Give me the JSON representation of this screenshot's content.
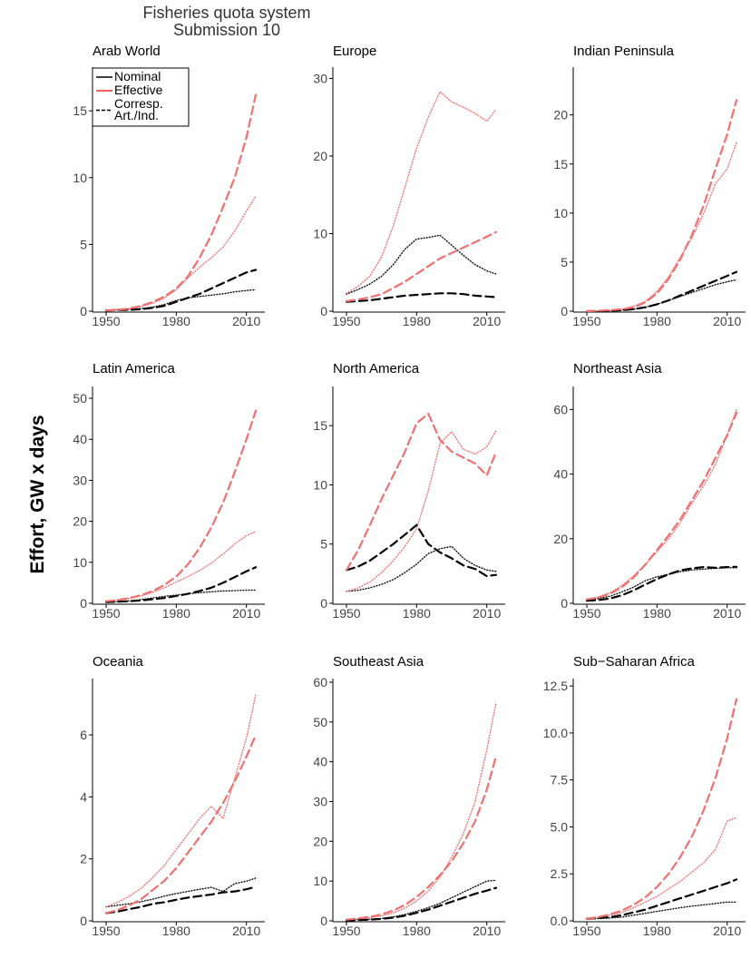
{
  "title": "Fisheries quota system",
  "subtitle": "Submission 10",
  "y_label": "Effort, GW x days",
  "chart_data": [
    {
      "type": "line",
      "title": "Arab World",
      "x": [
        1950,
        1955,
        1960,
        1965,
        1970,
        1975,
        1980,
        1985,
        1990,
        1995,
        2000,
        2005,
        2010,
        2014
      ],
      "xlim": [
        1950,
        2014
      ],
      "xticks": [
        1950,
        1980,
        2010
      ],
      "ylim": [
        0,
        18
      ],
      "yticks": [
        0,
        5,
        10,
        15
      ],
      "legend": {
        "position": "top-left",
        "entries": [
          {
            "label": [
              "Nominal"
            ],
            "color": "#000000",
            "dash": false
          },
          {
            "label": [
              "Effective"
            ],
            "color": "#e8322c",
            "dash": false
          },
          {
            "label": [
              "Corresp.",
              "Art./Ind."
            ],
            "color": "#000000",
            "dash": true
          }
        ]
      },
      "series": [
        {
          "color": "#000000",
          "dash": false,
          "values": [
            0.1,
            0.1,
            0.15,
            0.2,
            0.3,
            0.5,
            0.8,
            1.0,
            1.1,
            1.2,
            1.3,
            1.45,
            1.55,
            1.6
          ]
        },
        {
          "color": "#f07070",
          "dash": false,
          "values": [
            0.1,
            0.15,
            0.2,
            0.35,
            0.6,
            1.0,
            1.6,
            2.5,
            3.3,
            4.0,
            4.8,
            6.0,
            7.5,
            8.6
          ]
        },
        {
          "color": "#000000",
          "dash": true,
          "values": [
            0.05,
            0.08,
            0.1,
            0.15,
            0.25,
            0.4,
            0.7,
            1.0,
            1.3,
            1.7,
            2.1,
            2.5,
            2.9,
            3.1
          ]
        },
        {
          "color": "#f07070",
          "dash": true,
          "values": [
            0.05,
            0.1,
            0.2,
            0.4,
            0.7,
            1.1,
            1.7,
            2.6,
            4.0,
            5.7,
            7.8,
            10.0,
            13.0,
            16.2
          ]
        }
      ]
    },
    {
      "type": "line",
      "title": "Europe",
      "x": [
        1950,
        1955,
        1960,
        1965,
        1970,
        1975,
        1980,
        1985,
        1990,
        1995,
        2000,
        2005,
        2010,
        2014
      ],
      "xlim": [
        1950,
        2014
      ],
      "xticks": [
        1950,
        1980,
        2010
      ],
      "ylim": [
        0,
        31
      ],
      "yticks": [
        0,
        10,
        20,
        30
      ],
      "series": [
        {
          "color": "#000000",
          "dash": false,
          "values": [
            2.2,
            2.8,
            3.5,
            4.5,
            6.0,
            8.0,
            9.3,
            9.5,
            9.8,
            8.5,
            7.2,
            6.0,
            5.2,
            4.8
          ]
        },
        {
          "color": "#f07070",
          "dash": false,
          "values": [
            2.3,
            3.2,
            4.5,
            7.0,
            11.0,
            16.0,
            21.0,
            25.0,
            28.3,
            27.0,
            26.3,
            25.5,
            24.5,
            26.0
          ]
        },
        {
          "color": "#000000",
          "dash": true,
          "values": [
            1.2,
            1.3,
            1.4,
            1.6,
            1.8,
            2.0,
            2.1,
            2.2,
            2.3,
            2.3,
            2.2,
            2.0,
            1.9,
            1.8
          ]
        },
        {
          "color": "#f07070",
          "dash": true,
          "values": [
            1.3,
            1.5,
            1.8,
            2.2,
            3.0,
            3.8,
            4.8,
            5.8,
            6.8,
            7.5,
            8.2,
            8.9,
            9.6,
            10.2
          ]
        }
      ]
    },
    {
      "type": "line",
      "title": "Indian Peninsula",
      "x": [
        1950,
        1955,
        1960,
        1965,
        1970,
        1975,
        1980,
        1985,
        1990,
        1995,
        2000,
        2005,
        2010,
        2014
      ],
      "xlim": [
        1950,
        2014
      ],
      "xticks": [
        1950,
        1980,
        2010
      ],
      "ylim": [
        0,
        24.5
      ],
      "yticks": [
        0,
        5,
        10,
        15,
        20
      ],
      "series": [
        {
          "color": "#000000",
          "dash": false,
          "values": [
            0,
            0,
            0.05,
            0.1,
            0.2,
            0.4,
            0.7,
            1.1,
            1.5,
            1.9,
            2.3,
            2.7,
            3.0,
            3.2
          ]
        },
        {
          "color": "#f07070",
          "dash": false,
          "values": [
            0,
            0.05,
            0.1,
            0.2,
            0.5,
            1.0,
            2.0,
            3.5,
            5.5,
            7.5,
            10.0,
            13.0,
            14.5,
            17.2
          ]
        },
        {
          "color": "#000000",
          "dash": true,
          "values": [
            0,
            0,
            0.05,
            0.1,
            0.2,
            0.4,
            0.7,
            1.1,
            1.6,
            2.1,
            2.6,
            3.1,
            3.6,
            4.0
          ]
        },
        {
          "color": "#f07070",
          "dash": true,
          "values": [
            0,
            0.05,
            0.1,
            0.2,
            0.4,
            0.9,
            1.8,
            3.3,
            5.3,
            7.8,
            10.8,
            14.5,
            18.0,
            21.5
          ]
        }
      ]
    },
    {
      "type": "line",
      "title": "Latin America",
      "x": [
        1950,
        1955,
        1960,
        1965,
        1970,
        1975,
        1980,
        1985,
        1990,
        1995,
        2000,
        2005,
        2010,
        2014
      ],
      "xlim": [
        1950,
        2014
      ],
      "xticks": [
        1950,
        1980,
        2010
      ],
      "ylim": [
        0,
        52
      ],
      "yticks": [
        0,
        10,
        20,
        30,
        40,
        50
      ],
      "series": [
        {
          "color": "#000000",
          "dash": false,
          "values": [
            0.3,
            0.4,
            0.6,
            0.9,
            1.3,
            1.7,
            2.0,
            2.3,
            2.6,
            2.8,
            3.0,
            3.1,
            3.2,
            3.2
          ]
        },
        {
          "color": "#f07070",
          "dash": false,
          "values": [
            0.5,
            0.8,
            1.2,
            1.8,
            2.7,
            3.8,
            5.2,
            6.5,
            8.0,
            9.8,
            12.0,
            14.5,
            16.5,
            17.5
          ]
        },
        {
          "color": "#000000",
          "dash": true,
          "values": [
            0.3,
            0.4,
            0.5,
            0.7,
            1.0,
            1.3,
            1.8,
            2.3,
            3.0,
            3.8,
            5.0,
            6.4,
            7.8,
            8.8
          ]
        },
        {
          "color": "#f07070",
          "dash": true,
          "values": [
            0.5,
            0.8,
            1.3,
            2.0,
            3.0,
            4.5,
            6.5,
            9.5,
            13.5,
            18.5,
            24.5,
            32.0,
            40.0,
            47.0
          ]
        }
      ]
    },
    {
      "type": "line",
      "title": "North America",
      "x": [
        1950,
        1955,
        1960,
        1965,
        1970,
        1975,
        1980,
        1985,
        1990,
        1995,
        2000,
        2005,
        2010,
        2014
      ],
      "xlim": [
        1950,
        2014
      ],
      "xticks": [
        1950,
        1980,
        2010
      ],
      "ylim": [
        0,
        18
      ],
      "yticks": [
        0,
        5,
        10,
        15
      ],
      "series": [
        {
          "color": "#000000",
          "dash": false,
          "values": [
            1.0,
            1.1,
            1.3,
            1.6,
            2.0,
            2.6,
            3.3,
            4.2,
            4.6,
            4.8,
            3.8,
            3.2,
            2.8,
            2.7
          ]
        },
        {
          "color": "#f07070",
          "dash": false,
          "values": [
            1.0,
            1.3,
            1.8,
            2.6,
            3.6,
            4.8,
            6.3,
            9.5,
            13.5,
            14.5,
            13.0,
            12.6,
            13.2,
            14.6
          ]
        },
        {
          "color": "#000000",
          "dash": true,
          "values": [
            2.8,
            3.1,
            3.6,
            4.3,
            5.0,
            5.8,
            6.6,
            5.0,
            4.3,
            3.8,
            3.2,
            2.9,
            2.3,
            2.4
          ]
        },
        {
          "color": "#f07070",
          "dash": true,
          "values": [
            2.8,
            4.5,
            6.6,
            8.8,
            10.8,
            12.8,
            15.2,
            16.0,
            13.8,
            12.8,
            12.3,
            11.8,
            10.8,
            12.8
          ]
        }
      ]
    },
    {
      "type": "line",
      "title": "Northeast Asia",
      "x": [
        1950,
        1955,
        1960,
        1965,
        1970,
        1975,
        1980,
        1985,
        1990,
        1995,
        2000,
        2005,
        2010,
        2014
      ],
      "xlim": [
        1950,
        2014
      ],
      "xticks": [
        1950,
        1980,
        2010
      ],
      "ylim": [
        0,
        66
      ],
      "yticks": [
        0,
        20,
        40,
        60
      ],
      "series": [
        {
          "color": "#000000",
          "dash": false,
          "values": [
            1,
            1.5,
            2.2,
            3.5,
            5,
            7,
            8.2,
            9,
            9.8,
            10.3,
            10.6,
            10.8,
            11,
            11
          ]
        },
        {
          "color": "#f07070",
          "dash": false,
          "values": [
            1.2,
            2,
            3.3,
            5.5,
            8.5,
            12,
            16,
            20,
            25,
            31,
            36.5,
            43,
            52,
            60
          ]
        },
        {
          "color": "#000000",
          "dash": true,
          "values": [
            0.8,
            1.0,
            1.5,
            2.5,
            4,
            5.8,
            7.5,
            9,
            10.2,
            10.8,
            11.2,
            11,
            11.2,
            11.3
          ]
        },
        {
          "color": "#f07070",
          "dash": true,
          "values": [
            1.2,
            1.8,
            3,
            5,
            8,
            12,
            16.5,
            21,
            26,
            32,
            38,
            45,
            52,
            59
          ]
        }
      ]
    },
    {
      "type": "line",
      "title": "Oceania",
      "x": [
        1950,
        1955,
        1960,
        1965,
        1970,
        1975,
        1980,
        1985,
        1990,
        1995,
        2000,
        2005,
        2010,
        2014
      ],
      "xlim": [
        1950,
        2014
      ],
      "xticks": [
        1950,
        1980,
        2010
      ],
      "ylim": [
        0,
        7.7
      ],
      "yticks": [
        0,
        2,
        4,
        6
      ],
      "series": [
        {
          "color": "#000000",
          "dash": false,
          "values": [
            0.45,
            0.5,
            0.55,
            0.62,
            0.7,
            0.8,
            0.88,
            0.95,
            1.02,
            1.08,
            0.95,
            1.2,
            1.28,
            1.38
          ]
        },
        {
          "color": "#f07070",
          "dash": false,
          "values": [
            0.45,
            0.6,
            0.8,
            1.05,
            1.4,
            1.8,
            2.3,
            2.8,
            3.3,
            3.7,
            3.3,
            4.6,
            5.9,
            7.3
          ]
        },
        {
          "color": "#000000",
          "dash": true,
          "values": [
            0.25,
            0.3,
            0.38,
            0.45,
            0.55,
            0.6,
            0.68,
            0.75,
            0.8,
            0.85,
            0.92,
            0.95,
            1.02,
            1.1
          ]
        },
        {
          "color": "#f07070",
          "dash": true,
          "values": [
            0.25,
            0.35,
            0.5,
            0.7,
            1.0,
            1.3,
            1.7,
            2.2,
            2.7,
            3.2,
            3.8,
            4.5,
            5.3,
            6.0
          ]
        }
      ]
    },
    {
      "type": "line",
      "title": "Southeast Asia",
      "x": [
        1950,
        1955,
        1960,
        1965,
        1970,
        1975,
        1980,
        1985,
        1990,
        1995,
        2000,
        2005,
        2010,
        2014
      ],
      "xlim": [
        1950,
        2014
      ],
      "xticks": [
        1950,
        1980,
        2010
      ],
      "ylim": [
        0,
        60
      ],
      "yticks": [
        0,
        10,
        20,
        30,
        40,
        50,
        60
      ],
      "series": [
        {
          "color": "#000000",
          "dash": false,
          "values": [
            0.2,
            0.3,
            0.4,
            0.6,
            1.0,
            1.6,
            2.4,
            3.3,
            4.4,
            5.8,
            7.2,
            8.6,
            10,
            10.2
          ]
        },
        {
          "color": "#f07070",
          "dash": false,
          "values": [
            0.3,
            0.5,
            0.8,
            1.2,
            2,
            3.2,
            5,
            7.5,
            11,
            16,
            22,
            30,
            43,
            55
          ]
        },
        {
          "color": "#000000",
          "dash": true,
          "values": [
            0.1,
            0.2,
            0.3,
            0.5,
            0.8,
            1.3,
            2,
            2.8,
            3.8,
            4.8,
            5.8,
            6.8,
            7.6,
            8.3
          ]
        },
        {
          "color": "#f07070",
          "dash": true,
          "values": [
            0.3,
            0.6,
            1,
            1.6,
            2.6,
            4,
            6,
            8.5,
            11.5,
            15,
            19.5,
            25,
            33,
            41.5
          ]
        }
      ]
    },
    {
      "type": "line",
      "title": "Sub−Saharan Africa",
      "x": [
        1950,
        1955,
        1960,
        1965,
        1970,
        1975,
        1980,
        1985,
        1990,
        1995,
        2000,
        2005,
        2010,
        2014
      ],
      "xlim": [
        1950,
        2014
      ],
      "xticks": [
        1950,
        1980,
        2010
      ],
      "ylim": [
        0,
        12.7
      ],
      "yticks": [
        {
          "value": 0,
          "label": "0.0"
        },
        2.5,
        {
          "value": 5,
          "label": "5.0"
        },
        7.5,
        {
          "value": 10,
          "label": "10.0"
        },
        12.5
      ],
      "series": [
        {
          "color": "#000000",
          "dash": false,
          "values": [
            0.1,
            0.12,
            0.15,
            0.2,
            0.3,
            0.4,
            0.5,
            0.6,
            0.7,
            0.78,
            0.85,
            0.92,
            1.0,
            1.0
          ]
        },
        {
          "color": "#f07070",
          "dash": false,
          "values": [
            0.15,
            0.2,
            0.3,
            0.45,
            0.7,
            1.0,
            1.3,
            1.7,
            2.1,
            2.6,
            3.1,
            3.8,
            5.3,
            5.5
          ]
        },
        {
          "color": "#000000",
          "dash": true,
          "values": [
            0.1,
            0.15,
            0.2,
            0.3,
            0.45,
            0.6,
            0.8,
            1.0,
            1.2,
            1.4,
            1.6,
            1.8,
            2.0,
            2.2
          ]
        },
        {
          "color": "#f07070",
          "dash": true,
          "values": [
            0.1,
            0.2,
            0.35,
            0.55,
            0.85,
            1.25,
            1.8,
            2.5,
            3.4,
            4.5,
            5.9,
            7.6,
            9.7,
            11.8
          ]
        }
      ]
    }
  ]
}
